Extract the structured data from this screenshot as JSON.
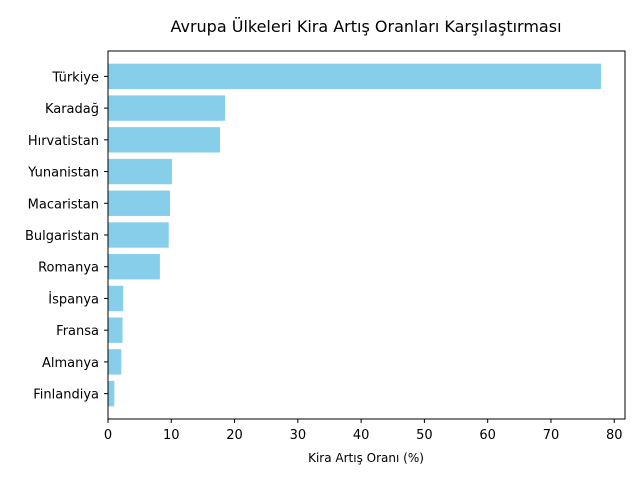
{
  "chart_data": {
    "type": "bar",
    "orientation": "horizontal",
    "title": "Avrupa Ülkeleri Kira Artış Oranları Karşılaştırması",
    "xlabel": "Kira Artış Oranı (%)",
    "ylabel": "",
    "xlim": [
      0,
      81.7
    ],
    "xticks": [
      0,
      10,
      20,
      30,
      40,
      50,
      60,
      70,
      80
    ],
    "grid": false,
    "bar_color": "#87ceeb",
    "categories": [
      "Türkiye",
      "Karadağ",
      "Hırvatistan",
      "Yunanistan",
      "Macaristan",
      "Bulgaristan",
      "Romanya",
      "İspanya",
      "Fransa",
      "Almanya",
      "Finlandiya"
    ],
    "values": [
      77.9,
      18.5,
      17.7,
      10.1,
      9.8,
      9.6,
      8.2,
      2.4,
      2.3,
      2.1,
      1.0
    ]
  }
}
